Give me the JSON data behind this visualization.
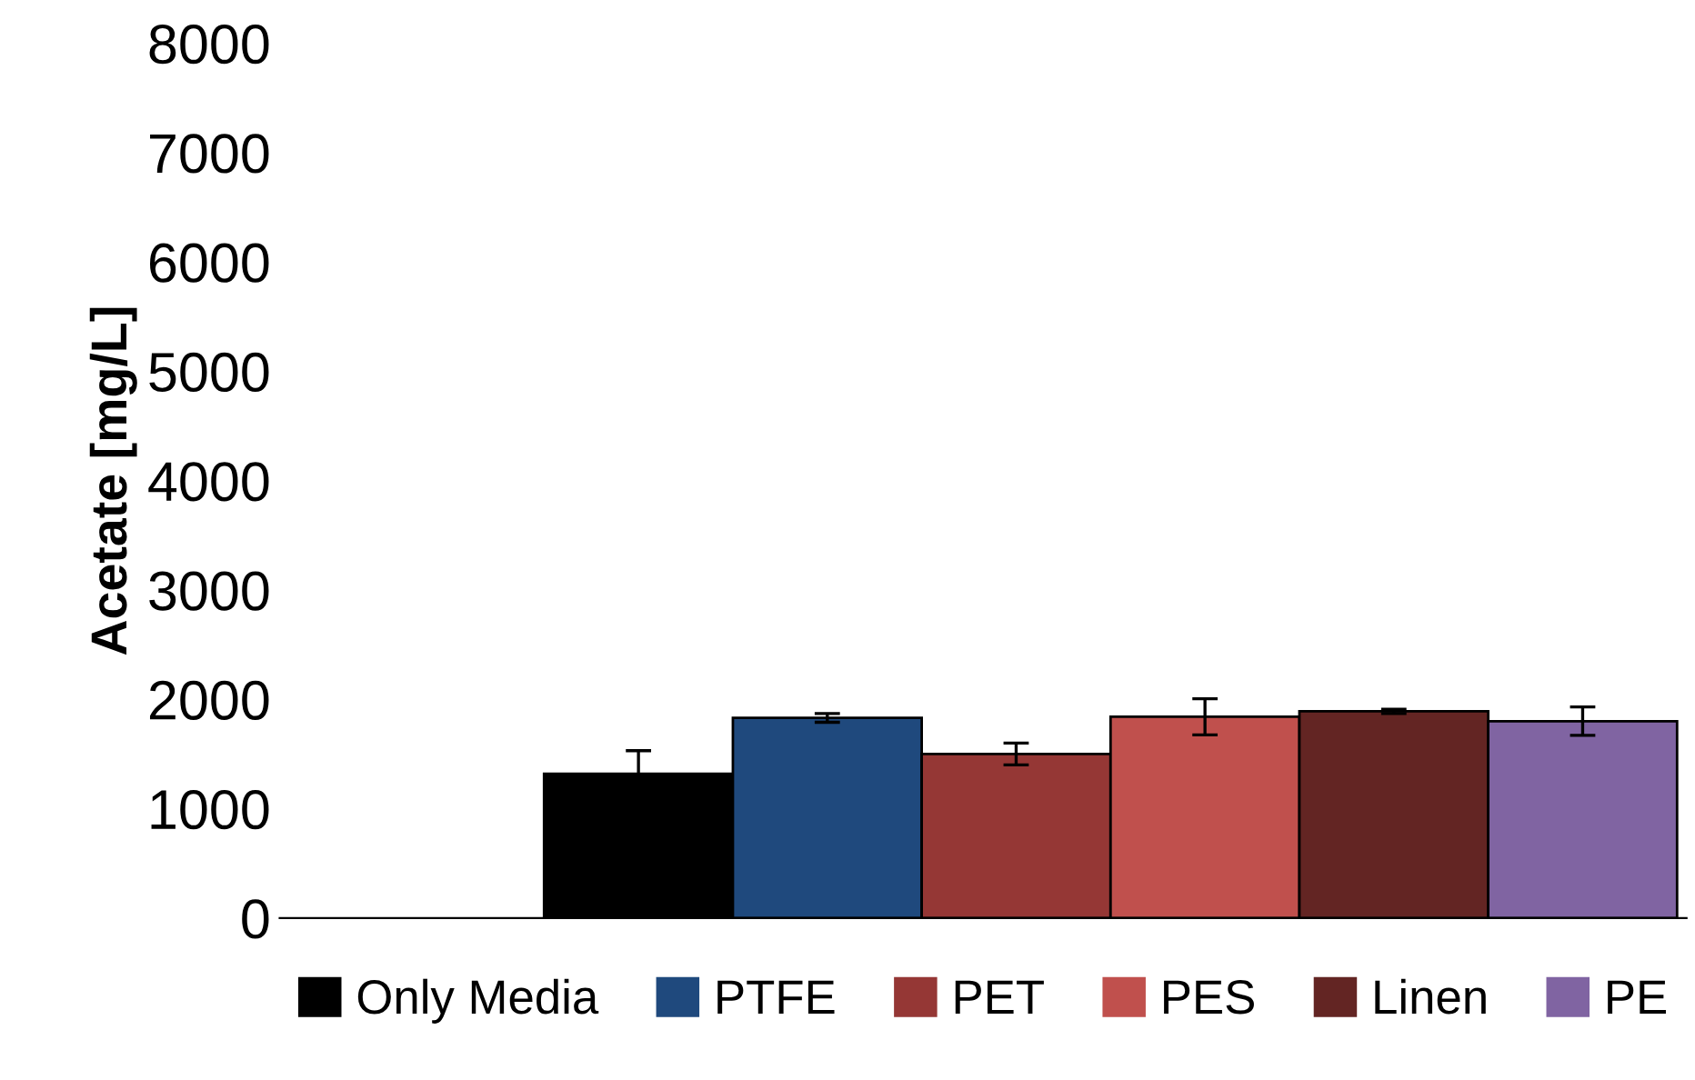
{
  "chart_data": {
    "type": "bar",
    "ylabel": "Acetate [mg/L]",
    "categories": [
      null
    ],
    "ylim": [
      0,
      8000
    ],
    "yticks": [
      0,
      1000,
      2000,
      3000,
      4000,
      5000,
      6000,
      7000,
      8000
    ],
    "grid": false,
    "legend": "bottom",
    "series": [
      {
        "name": "Only Media",
        "color": "#000000",
        "values": [
          1320
        ],
        "errors": [
          210
        ]
      },
      {
        "name": "PTFE",
        "color": "#1f497d",
        "values": [
          1830
        ],
        "errors": [
          40
        ]
      },
      {
        "name": "PET",
        "color": "#953735",
        "values": [
          1500
        ],
        "errors": [
          100
        ]
      },
      {
        "name": "PES",
        "color": "#c0504d",
        "values": [
          1840
        ],
        "errors": [
          165
        ]
      },
      {
        "name": "Linen",
        "color": "#632523",
        "values": [
          1890
        ],
        "errors": [
          20
        ]
      },
      {
        "name": "PE",
        "color": "#8064a2",
        "values": [
          1800
        ],
        "errors": [
          130
        ]
      }
    ]
  }
}
